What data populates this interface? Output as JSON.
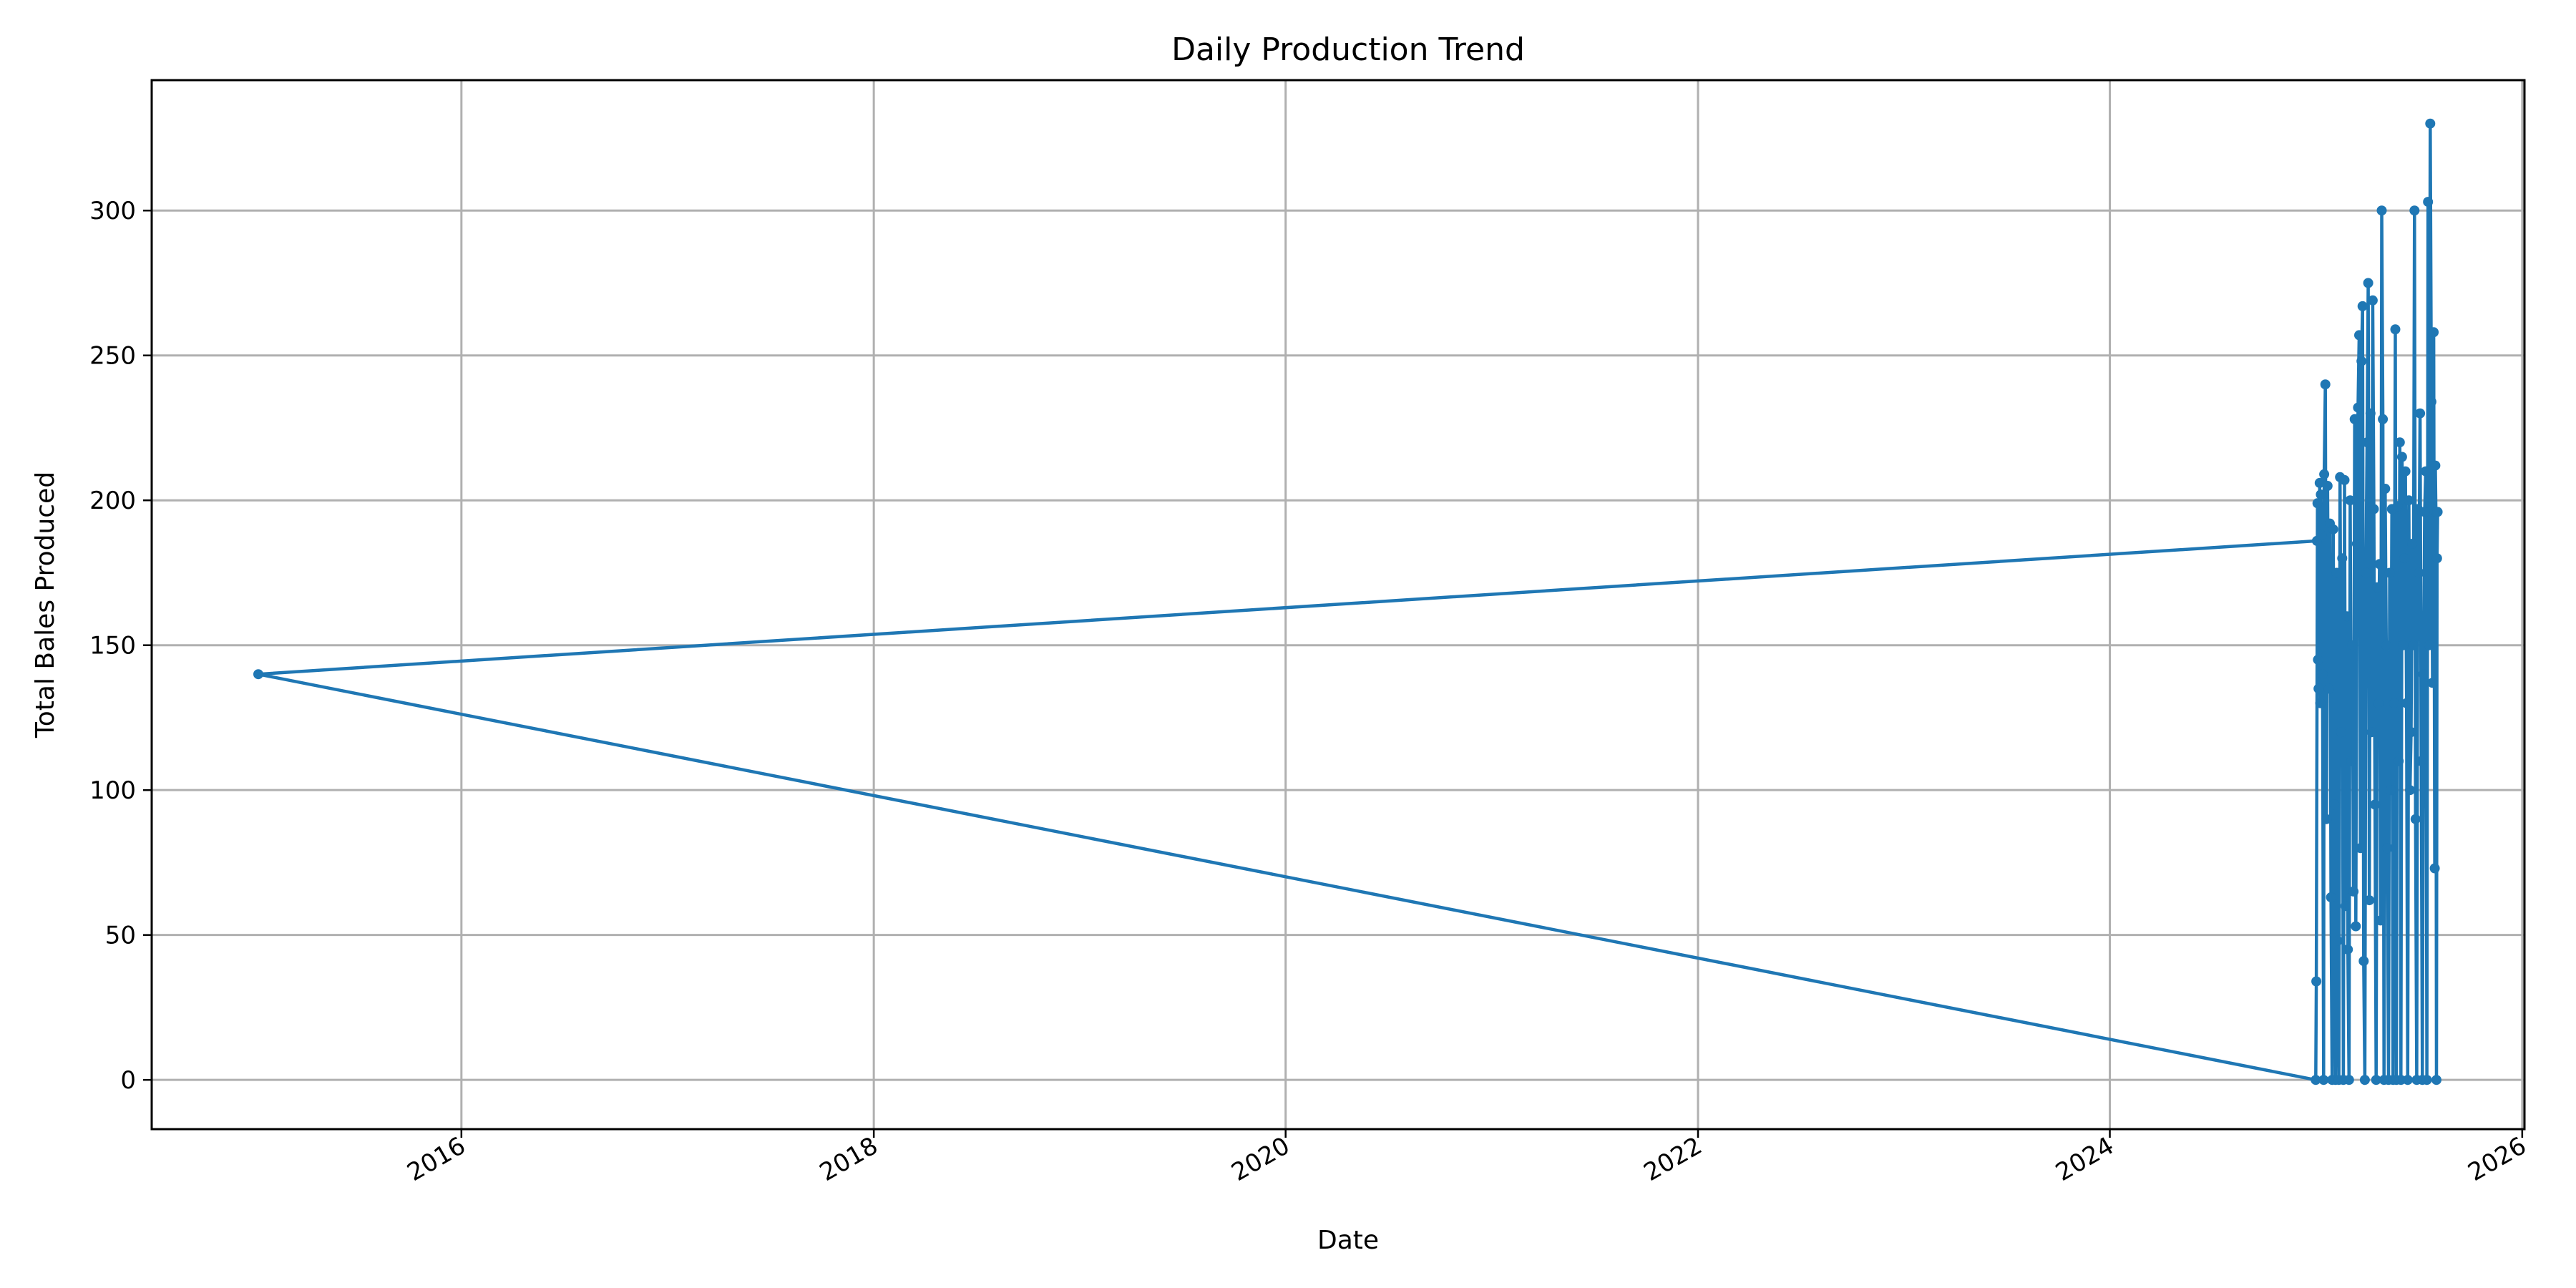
{
  "chart_data": {
    "type": "line",
    "title": "Daily Production Trend",
    "xlabel": "Date",
    "ylabel": "Total Bales Produced",
    "x_axis_type": "date",
    "xlim": [
      "2014-07-01",
      "2026-01-05"
    ],
    "ylim": [
      -17,
      345
    ],
    "x_ticks": [
      "2016",
      "2018",
      "2020",
      "2022",
      "2024",
      "2026"
    ],
    "y_ticks": [
      0,
      50,
      100,
      150,
      200,
      250,
      300
    ],
    "grid": true,
    "legend": "none",
    "color": "#1f77b4",
    "marker": "circle",
    "series": [
      {
        "x": [
          "2025-01-02",
          "2015-01-06",
          "2024-12-31",
          "2025-01-01",
          "2025-01-03",
          "2025-01-04",
          "2025-01-05",
          "2025-01-07",
          "2025-01-08",
          "2025-01-09",
          "2025-01-10",
          "2025-01-12",
          "2025-01-14",
          "2025-01-15",
          "2025-01-17",
          "2025-01-19",
          "2025-01-21",
          "2025-01-23",
          "2025-01-25",
          "2025-01-27",
          "2025-01-29",
          "2025-01-31",
          "2025-02-02",
          "2025-02-04",
          "2025-02-06",
          "2025-02-08",
          "2025-02-10",
          "2025-02-12",
          "2025-02-14",
          "2025-02-16",
          "2025-02-18",
          "2025-02-20",
          "2025-02-22",
          "2025-02-24",
          "2025-02-26",
          "2025-02-28",
          "2025-03-02",
          "2025-03-04",
          "2025-03-06",
          "2025-03-08",
          "2025-03-10",
          "2025-03-12",
          "2025-03-14",
          "2025-03-16",
          "2025-03-18",
          "2025-03-20",
          "2025-03-22",
          "2025-03-24",
          "2025-03-26",
          "2025-03-28",
          "2025-03-30",
          "2025-04-01",
          "2025-04-03",
          "2025-04-05",
          "2025-04-07",
          "2025-04-09",
          "2025-04-11",
          "2025-04-13",
          "2025-04-15",
          "2025-04-17",
          "2025-04-19",
          "2025-04-21",
          "2025-04-23",
          "2025-04-25",
          "2025-04-27",
          "2025-04-29",
          "2025-05-01",
          "2025-05-03",
          "2025-05-05",
          "2025-05-07",
          "2025-05-09",
          "2025-05-11",
          "2025-05-13",
          "2025-05-15",
          "2025-05-17",
          "2025-05-19",
          "2025-05-21",
          "2025-05-23",
          "2025-05-25",
          "2025-05-27",
          "2025-05-29",
          "2025-05-31",
          "2025-06-02",
          "2025-06-04",
          "2025-06-06",
          "2025-06-08",
          "2025-06-10",
          "2025-06-12",
          "2025-06-14",
          "2025-06-16",
          "2025-06-18",
          "2025-06-20",
          "2025-06-22",
          "2025-06-24",
          "2025-06-26",
          "2025-06-28",
          "2025-06-30",
          "2025-07-02",
          "2025-07-04",
          "2025-07-06",
          "2025-07-08",
          "2025-07-10",
          "2025-07-12",
          "2025-07-14",
          "2025-07-16",
          "2025-07-18",
          "2025-07-20",
          "2025-07-22",
          "2025-07-24",
          "2025-07-26",
          "2025-07-28",
          "2025-07-30",
          "2025-07-31",
          "2025-08-01",
          "2025-08-02",
          "2025-08-03",
          "2025-08-04"
        ],
        "y": [
          186,
          140,
          0,
          34,
          199,
          145,
          135,
          206,
          130,
          202,
          188,
          140,
          0,
          209,
          240,
          90,
          205,
          135,
          192,
          63,
          0,
          190,
          95,
          0,
          175,
          48,
          0,
          208,
          120,
          180,
          0,
          207,
          60,
          160,
          45,
          0,
          200,
          110,
          150,
          65,
          228,
          53,
          185,
          232,
          257,
          80,
          248,
          267,
          41,
          0,
          175,
          220,
          275,
          62,
          230,
          120,
          269,
          197,
          95,
          0,
          170,
          130,
          178,
          55,
          300,
          228,
          0,
          204,
          150,
          80,
          0,
          175,
          100,
          197,
          0,
          130,
          259,
          0,
          198,
          110,
          220,
          0,
          215,
          150,
          180,
          210,
          130,
          0,
          200,
          100,
          120,
          185,
          150,
          300,
          90,
          0,
          197,
          175,
          230,
          110,
          0,
          140,
          196,
          210,
          0,
          303,
          150,
          330,
          234,
          137,
          258,
          73,
          212,
          196,
          0,
          180,
          196
        ]
      }
    ]
  }
}
